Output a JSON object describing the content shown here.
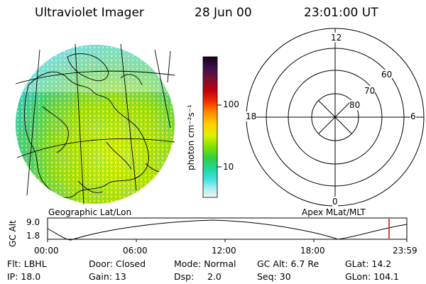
{
  "header": {
    "title": "Ultraviolet Imager",
    "date": "28 Jun 00",
    "time": "23:01:00 UT"
  },
  "colorbar": {
    "unit_label": "photon cm⁻²s⁻¹",
    "ticks": [
      "100",
      "10"
    ]
  },
  "map_panel": {
    "caption": "Geographic Lat/Lon"
  },
  "polar_panel": {
    "caption": "Apex MLat/MLT",
    "mlt_labels": {
      "top": "12",
      "left": "18",
      "right": "6",
      "bottom": "0"
    },
    "mlat_labels": [
      "60",
      "70",
      "80"
    ]
  },
  "altitude_plot": {
    "ylabel": "GC Alt",
    "yticks": [
      "9.0",
      "1.8"
    ],
    "xticks": [
      "00:00",
      "06:00",
      "12:00",
      "18:00",
      "23:59"
    ],
    "current_time_marker_color": "#e00000"
  },
  "status": {
    "row1": {
      "flt": "Flt: LBHL",
      "door": "Door: Closed",
      "mode": "Mode: Normal",
      "gc_alt": "GC Alt: 6.7 Re",
      "glat": "GLat: 14.2"
    },
    "row2": {
      "ip": "IP: 18.0",
      "gain": "Gain: 13",
      "dsp": "Dsp:",
      "dsp_value": "2.0",
      "seq": "Seq: 30",
      "glon": "GLon: 104.1"
    }
  },
  "colors": {
    "colorbar_top": "#1a0010",
    "colorbar_bottom": "#f4f4f4",
    "aurora_bright": "#b8e000",
    "aurora_dim": "#30d8c8"
  }
}
